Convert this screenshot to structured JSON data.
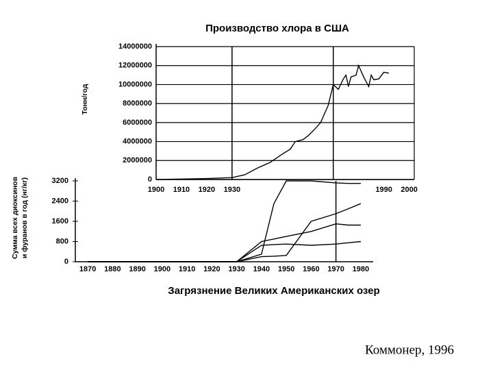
{
  "chart_data": [
    {
      "type": "line",
      "title": "Производство хлора в США",
      "ylabel": "Тонн/год",
      "x": [
        1900,
        1910,
        1920,
        1930,
        1935,
        1940,
        1945,
        1950,
        1953,
        1955,
        1958,
        1960,
        1963,
        1965,
        1968,
        1970,
        1972,
        1974,
        1975,
        1976,
        1977,
        1979,
        1980,
        1981,
        1982,
        1984,
        1985,
        1986,
        1988,
        1990,
        1992
      ],
      "series": [
        {
          "color": "#000000",
          "values": [
            0,
            50000,
            100000,
            200000,
            500000,
            1200000,
            1800000,
            2700000,
            3200000,
            4000000,
            4200000,
            4600000,
            5400000,
            6000000,
            7800000,
            10000000,
            9500000,
            10600000,
            11000000,
            9800000,
            10800000,
            11000000,
            12000000,
            11400000,
            10800000,
            9800000,
            11000000,
            10500000,
            10600000,
            11300000,
            11200000
          ]
        }
      ],
      "xlim": [
        1900,
        2002
      ],
      "ylim": [
        0,
        14000000
      ],
      "xticks": [
        1900,
        1910,
        1920,
        1930,
        1990,
        2000
      ],
      "yticks": [
        0,
        2000000,
        4000000,
        6000000,
        8000000,
        10000000,
        12000000,
        14000000
      ],
      "grid": true,
      "vlines": [
        1930,
        1970
      ]
    },
    {
      "type": "line",
      "title": "Загрязнение Великих Американских озер",
      "ylabel": [
        "Сумма всех диоксинов",
        "и фуранов в год (нг/кг)"
      ],
      "x": [
        1870,
        1930,
        1940,
        1945,
        1950,
        1960,
        1970,
        1975,
        1980
      ],
      "series": [
        {
          "color": "#000000",
          "values": [
            0,
            0,
            300,
            2300,
            3200,
            3200,
            3120,
            3100,
            3100
          ]
        },
        {
          "color": "#000000",
          "values": [
            0,
            0,
            800,
            900,
            1000,
            1200,
            1500,
            1450,
            1450
          ]
        },
        {
          "color": "#000000",
          "values": [
            0,
            0,
            200,
            220,
            250,
            1600,
            1900,
            2100,
            2300
          ]
        },
        {
          "color": "#000000",
          "values": [
            0,
            0,
            650,
            680,
            700,
            650,
            700,
            750,
            800
          ]
        }
      ],
      "xlim": [
        1865,
        1985
      ],
      "ylim": [
        0,
        3200
      ],
      "xticks": [
        1870,
        1880,
        1890,
        1900,
        1910,
        1920,
        1930,
        1940,
        1950,
        1960,
        1970,
        1980
      ],
      "yticks": [
        0,
        800,
        1600,
        2400,
        3200
      ],
      "grid": false,
      "vlines": [
        1970
      ]
    }
  ],
  "caption": "Коммонер, 1996"
}
